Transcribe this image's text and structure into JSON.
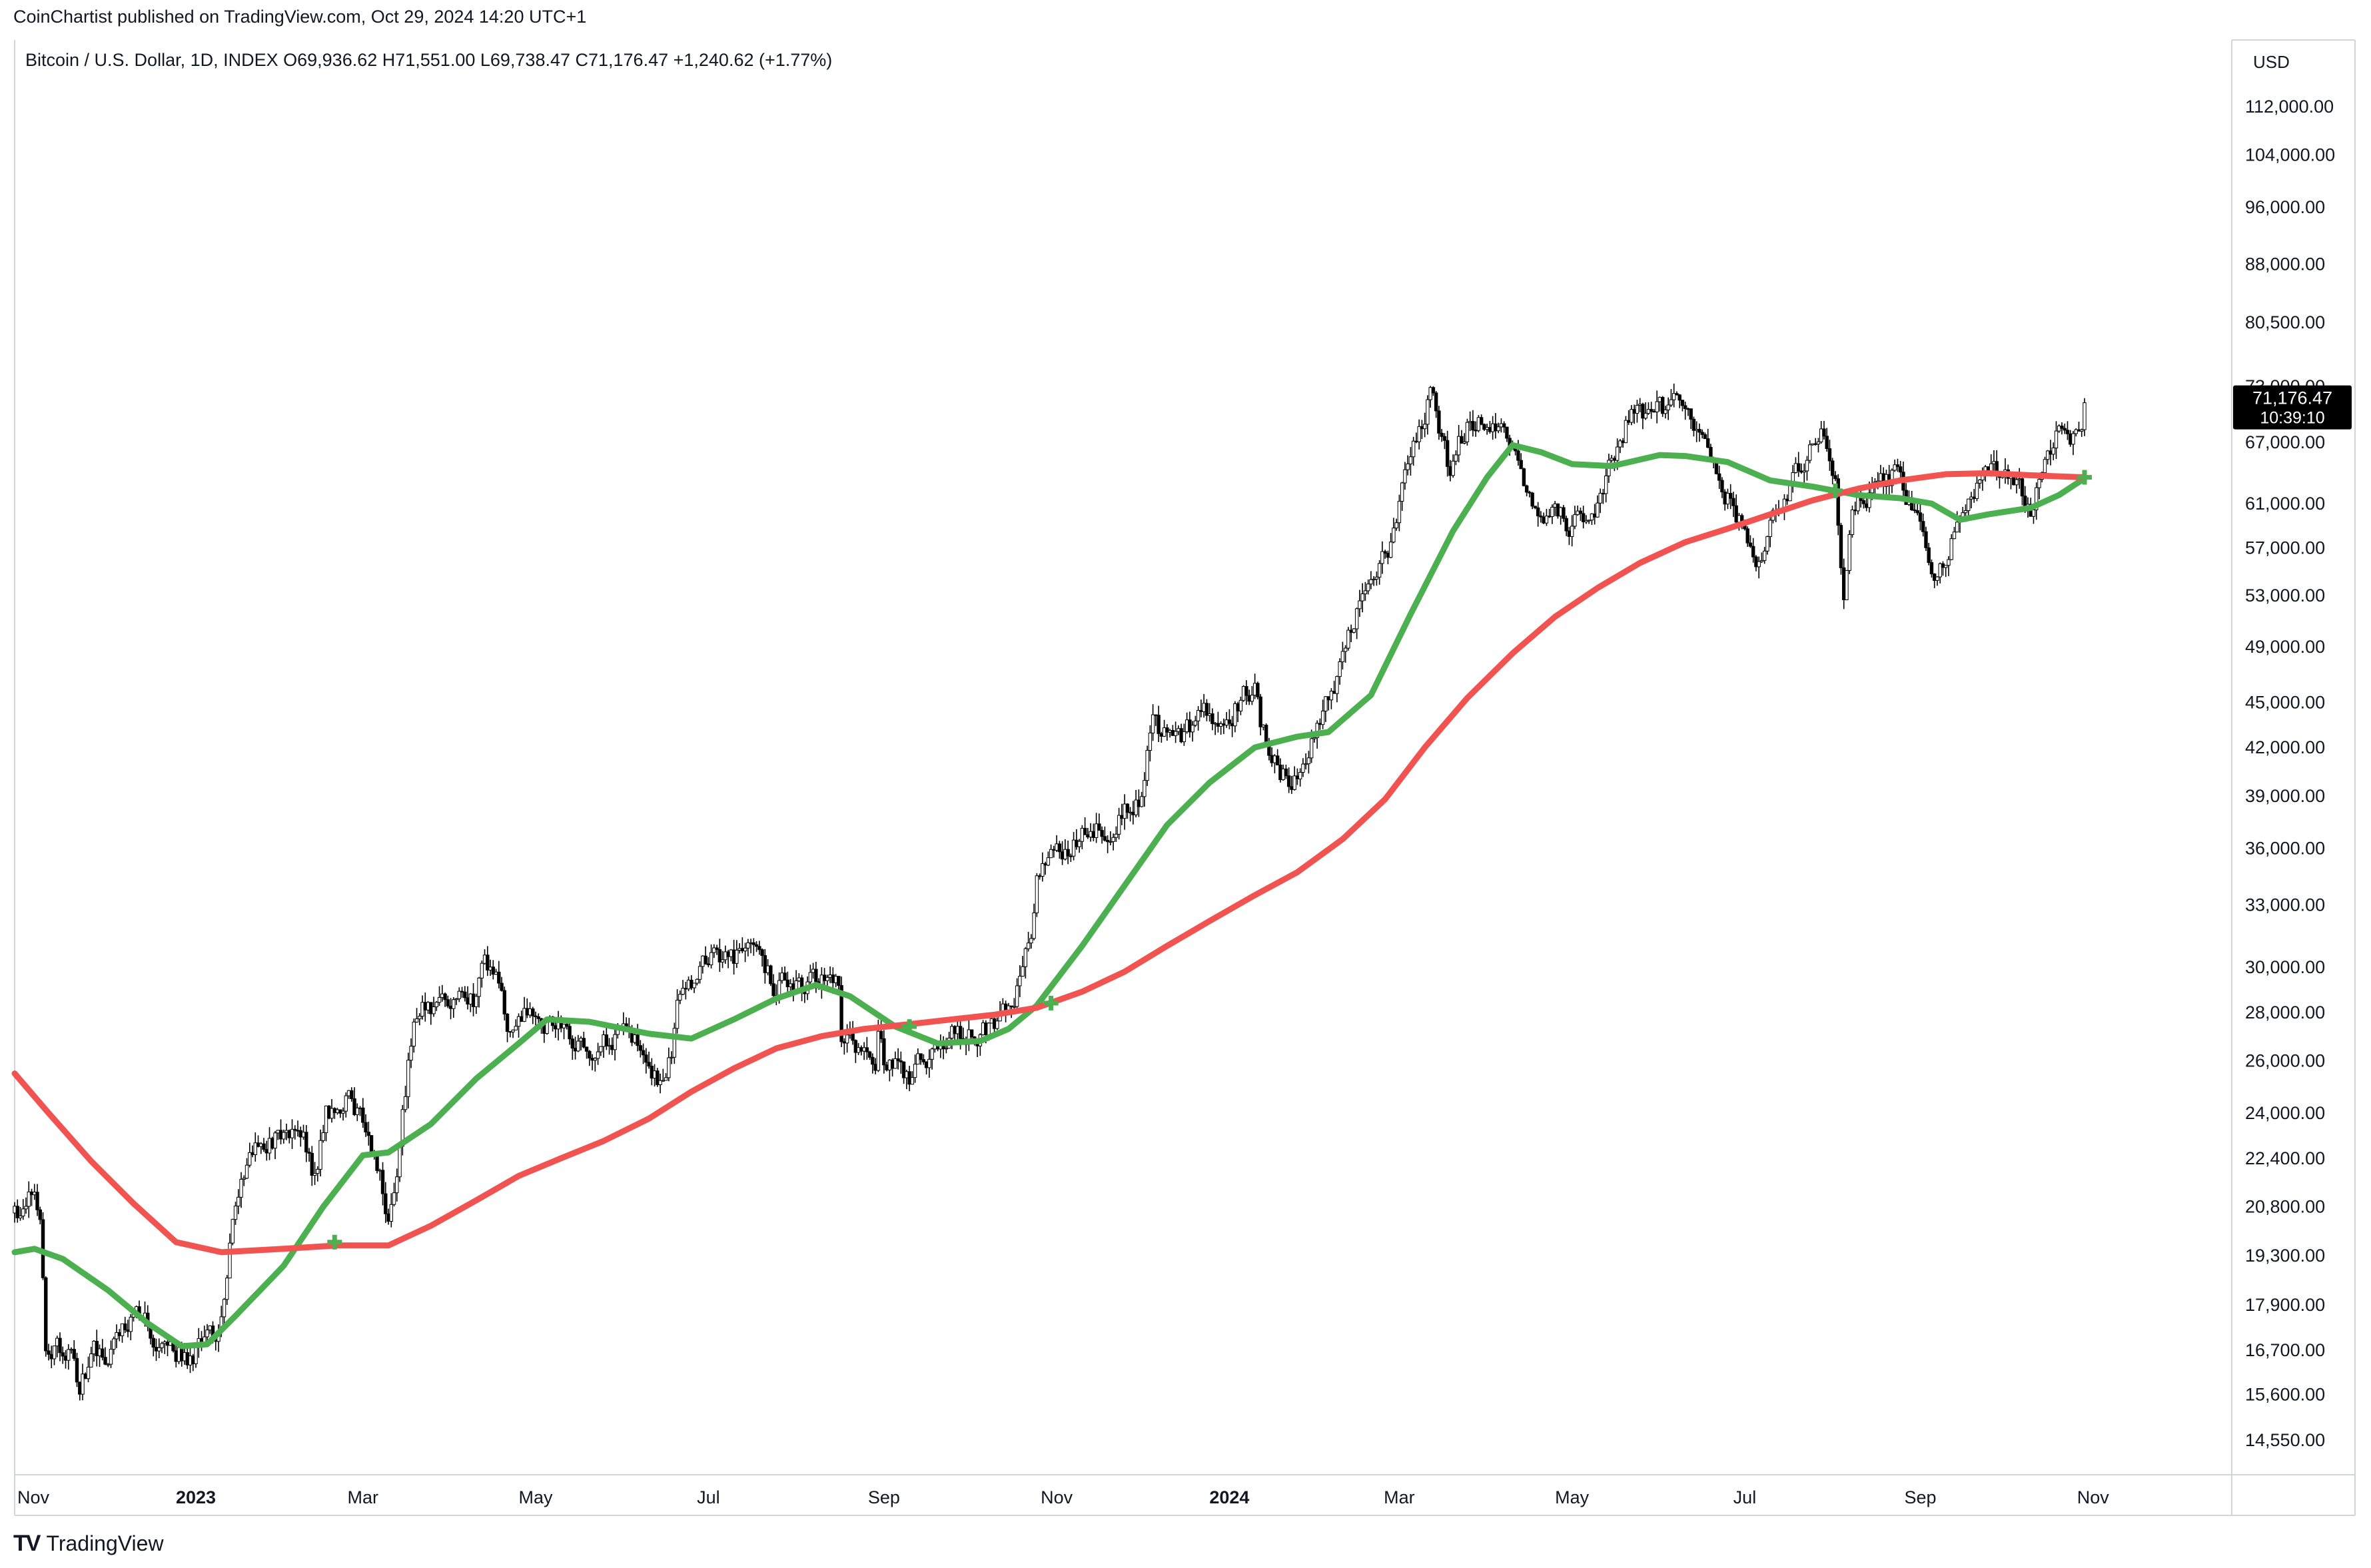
{
  "header": {
    "publisher": "CoinChartist published on TradingView.com, Oct 29, 2024 14:20 UTC+1",
    "symbol_info": "Bitcoin / U.S. Dollar, 1D, INDEX  O69,936.62  H71,551.00  L69,738.47  C71,176.47  +1,240.62 (+1.77%)"
  },
  "price_scale": {
    "currency": "USD",
    "last_price_label": "71,176.47",
    "countdown_label": "10:39:10"
  },
  "branding": {
    "logo": "TV",
    "name": "TradingView"
  },
  "colors": {
    "green_ma": "#4caf50",
    "red_ma": "#f05350",
    "candles": "#000000",
    "last_price_bg": "#000000"
  },
  "chart_data": {
    "type": "line",
    "title": "Bitcoin / U.S. Dollar, 1D, INDEX",
    "log_scale": true,
    "ylim": [
      13800,
      124000
    ],
    "xlim": [
      "2022-10-29",
      "2024-12-20"
    ],
    "y_ticks": [
      {
        "value": 112000,
        "label": "112,000.00"
      },
      {
        "value": 104000,
        "label": "104,000.00"
      },
      {
        "value": 96000,
        "label": "96,000.00"
      },
      {
        "value": 88000,
        "label": "88,000.00"
      },
      {
        "value": 80500,
        "label": "80,500.00"
      },
      {
        "value": 73000,
        "label": "73,000.00"
      },
      {
        "value": 67000,
        "label": "67,000.00"
      },
      {
        "value": 61000,
        "label": "61,000.00"
      },
      {
        "value": 57000,
        "label": "57,000.00"
      },
      {
        "value": 53000,
        "label": "53,000.00"
      },
      {
        "value": 49000,
        "label": "49,000.00"
      },
      {
        "value": 45000,
        "label": "45,000.00"
      },
      {
        "value": 42000,
        "label": "42,000.00"
      },
      {
        "value": 39000,
        "label": "39,000.00"
      },
      {
        "value": 36000,
        "label": "36,000.00"
      },
      {
        "value": 33000,
        "label": "33,000.00"
      },
      {
        "value": 30000,
        "label": "30,000.00"
      },
      {
        "value": 28000,
        "label": "28,000.00"
      },
      {
        "value": 26000,
        "label": "26,000.00"
      },
      {
        "value": 24000,
        "label": "24,000.00"
      },
      {
        "value": 22400,
        "label": "22,400.00"
      },
      {
        "value": 20800,
        "label": "20,800.00"
      },
      {
        "value": 19300,
        "label": "19,300.00"
      },
      {
        "value": 17900,
        "label": "17,900.00"
      },
      {
        "value": 16700,
        "label": "16,700.00"
      },
      {
        "value": 15600,
        "label": "15,600.00"
      },
      {
        "value": 14550,
        "label": "14,550.00"
      }
    ],
    "x_ticks": [
      {
        "date": "2022-11-01",
        "label": "Nov",
        "bold": false
      },
      {
        "date": "2023-01-01",
        "label": "2023",
        "bold": true
      },
      {
        "date": "2023-03-01",
        "label": "Mar",
        "bold": false
      },
      {
        "date": "2023-05-01",
        "label": "May",
        "bold": false
      },
      {
        "date": "2023-07-01",
        "label": "Jul",
        "bold": false
      },
      {
        "date": "2023-09-01",
        "label": "Sep",
        "bold": false
      },
      {
        "date": "2023-11-01",
        "label": "Nov",
        "bold": false
      },
      {
        "date": "2024-01-01",
        "label": "2024",
        "bold": true
      },
      {
        "date": "2024-03-01",
        "label": "Mar",
        "bold": false
      },
      {
        "date": "2024-05-01",
        "label": "May",
        "bold": false
      },
      {
        "date": "2024-07-01",
        "label": "Jul",
        "bold": false
      },
      {
        "date": "2024-09-01",
        "label": "Sep",
        "bold": false
      },
      {
        "date": "2024-11-01",
        "label": "Nov",
        "bold": false
      }
    ],
    "price_anchors": [
      [
        "2022-10-29",
        20600
      ],
      [
        "2022-11-05",
        21100
      ],
      [
        "2022-11-07",
        20500
      ],
      [
        "2022-11-09",
        16500
      ],
      [
        "2022-11-12",
        16700
      ],
      [
        "2022-11-18",
        16600
      ],
      [
        "2022-11-21",
        15800
      ],
      [
        "2022-11-26",
        16500
      ],
      [
        "2022-12-05",
        17000
      ],
      [
        "2022-12-14",
        17800
      ],
      [
        "2022-12-18",
        16800
      ],
      [
        "2022-12-31",
        16550
      ],
      [
        "2023-01-08",
        17100
      ],
      [
        "2023-01-13",
        19800
      ],
      [
        "2023-01-16",
        21000
      ],
      [
        "2023-01-21",
        22600
      ],
      [
        "2023-01-30",
        23200
      ],
      [
        "2023-02-08",
        23000
      ],
      [
        "2023-02-12",
        21800
      ],
      [
        "2023-02-16",
        24000
      ],
      [
        "2023-02-23",
        24500
      ],
      [
        "2023-03-02",
        23400
      ],
      [
        "2023-03-07",
        22000
      ],
      [
        "2023-03-10",
        20200
      ],
      [
        "2023-03-13",
        22200
      ],
      [
        "2023-03-16",
        24800
      ],
      [
        "2023-03-19",
        28000
      ],
      [
        "2023-03-31",
        28400
      ],
      [
        "2023-04-09",
        28300
      ],
      [
        "2023-04-11",
        30200
      ],
      [
        "2023-04-18",
        29600
      ],
      [
        "2023-04-21",
        27200
      ],
      [
        "2023-05-01",
        28000
      ],
      [
        "2023-05-10",
        27400
      ],
      [
        "2023-05-20",
        26900
      ],
      [
        "2023-06-01",
        27000
      ],
      [
        "2023-06-10",
        26000
      ],
      [
        "2023-06-15",
        25300
      ],
      [
        "2023-06-18",
        26300
      ],
      [
        "2023-06-21",
        29000
      ],
      [
        "2023-07-01",
        30500
      ],
      [
        "2023-07-10",
        30200
      ],
      [
        "2023-07-14",
        30900
      ],
      [
        "2023-07-24",
        29200
      ],
      [
        "2023-08-01",
        29300
      ],
      [
        "2023-08-10",
        29400
      ],
      [
        "2023-08-16",
        29100
      ],
      [
        "2023-08-17",
        26600
      ],
      [
        "2023-08-29",
        26000
      ],
      [
        "2023-08-30",
        27600
      ],
      [
        "2023-09-01",
        26000
      ],
      [
        "2023-09-11",
        25300
      ],
      [
        "2023-09-18",
        26600
      ],
      [
        "2023-10-01",
        27400
      ],
      [
        "2023-10-10",
        27200
      ],
      [
        "2023-10-16",
        28300
      ],
      [
        "2023-10-20",
        29500
      ],
      [
        "2023-10-23",
        31200
      ],
      [
        "2023-10-25",
        34500
      ],
      [
        "2023-11-10",
        37200
      ],
      [
        "2023-11-20",
        37400
      ],
      [
        "2023-12-01",
        39000
      ],
      [
        "2023-12-05",
        43500
      ],
      [
        "2023-12-13",
        42000
      ],
      [
        "2023-12-20",
        43500
      ],
      [
        "2024-01-02",
        44900
      ],
      [
        "2024-01-10",
        46000
      ],
      [
        "2024-01-12",
        43000
      ],
      [
        "2024-01-23",
        39600
      ],
      [
        "2024-02-01",
        42800
      ],
      [
        "2024-02-09",
        47500
      ],
      [
        "2024-02-15",
        51800
      ],
      [
        "2024-02-27",
        57000
      ],
      [
        "2024-03-05",
        66000
      ],
      [
        "2024-03-13",
        73000
      ],
      [
        "2024-03-19",
        63500
      ],
      [
        "2024-03-26",
        70000
      ],
      [
        "2024-04-05",
        68000
      ],
      [
        "2024-04-13",
        65000
      ],
      [
        "2024-04-17",
        61200
      ],
      [
        "2024-04-30",
        59000
      ],
      [
        "2024-05-10",
        61000
      ],
      [
        "2024-05-15",
        66000
      ],
      [
        "2024-05-21",
        70000
      ],
      [
        "2024-06-07",
        70500
      ],
      [
        "2024-06-20",
        65000
      ],
      [
        "2024-07-05",
        56500
      ],
      [
        "2024-07-15",
        62000
      ],
      [
        "2024-07-29",
        68000
      ],
      [
        "2024-08-02",
        64000
      ],
      [
        "2024-08-05",
        53000
      ],
      [
        "2024-08-08",
        61000
      ],
      [
        "2024-08-25",
        64000
      ],
      [
        "2024-09-06",
        54000
      ],
      [
        "2024-09-15",
        59000
      ],
      [
        "2024-09-27",
        65500
      ],
      [
        "2024-10-10",
        60000
      ],
      [
        "2024-10-15",
        66000
      ],
      [
        "2024-10-20",
        68500
      ],
      [
        "2024-10-24",
        67500
      ],
      [
        "2024-10-29",
        71176
      ]
    ],
    "series": [
      {
        "color": "#4caf50",
        "points": [
          [
            "2022-10-29",
            19400
          ],
          [
            "2022-11-05",
            19500
          ],
          [
            "2022-11-15",
            19200
          ],
          [
            "2022-12-01",
            18300
          ],
          [
            "2022-12-15",
            17400
          ],
          [
            "2022-12-27",
            16800
          ],
          [
            "2023-01-05",
            16850
          ],
          [
            "2023-01-15",
            17600
          ],
          [
            "2023-02-01",
            19000
          ],
          [
            "2023-02-15",
            20800
          ],
          [
            "2023-03-01",
            22500
          ],
          [
            "2023-03-10",
            22600
          ],
          [
            "2023-03-25",
            23600
          ],
          [
            "2023-04-10",
            25300
          ],
          [
            "2023-04-25",
            26700
          ],
          [
            "2023-05-05",
            27700
          ],
          [
            "2023-05-20",
            27600
          ],
          [
            "2023-06-10",
            27100
          ],
          [
            "2023-06-25",
            26900
          ],
          [
            "2023-07-10",
            27700
          ],
          [
            "2023-07-25",
            28600
          ],
          [
            "2023-08-08",
            29200
          ],
          [
            "2023-08-20",
            28700
          ],
          [
            "2023-09-05",
            27400
          ],
          [
            "2023-09-20",
            26700
          ],
          [
            "2023-10-05",
            26800
          ],
          [
            "2023-10-15",
            27300
          ],
          [
            "2023-10-25",
            28300
          ],
          [
            "2023-11-10",
            31000
          ],
          [
            "2023-11-25",
            34000
          ],
          [
            "2023-12-10",
            37300
          ],
          [
            "2023-12-25",
            39800
          ],
          [
            "2024-01-10",
            42000
          ],
          [
            "2024-01-25",
            42700
          ],
          [
            "2024-02-05",
            43000
          ],
          [
            "2024-02-20",
            45500
          ],
          [
            "2024-03-05",
            51500
          ],
          [
            "2024-03-20",
            58500
          ],
          [
            "2024-04-01",
            63500
          ],
          [
            "2024-04-10",
            66700
          ],
          [
            "2024-04-20",
            66000
          ],
          [
            "2024-05-01",
            64800
          ],
          [
            "2024-05-15",
            64600
          ],
          [
            "2024-06-01",
            65700
          ],
          [
            "2024-06-10",
            65600
          ],
          [
            "2024-06-25",
            65000
          ],
          [
            "2024-07-10",
            63200
          ],
          [
            "2024-07-25",
            62600
          ],
          [
            "2024-08-10",
            61800
          ],
          [
            "2024-08-25",
            61500
          ],
          [
            "2024-09-05",
            61000
          ],
          [
            "2024-09-15",
            59500
          ],
          [
            "2024-09-25",
            60000
          ],
          [
            "2024-10-10",
            60600
          ],
          [
            "2024-10-20",
            61800
          ],
          [
            "2024-10-29",
            63400
          ]
        ]
      },
      {
        "color": "#f05350",
        "points": [
          [
            "2022-10-29",
            25500
          ],
          [
            "2022-11-10",
            24000
          ],
          [
            "2022-11-25",
            22300
          ],
          [
            "2022-12-10",
            20900
          ],
          [
            "2022-12-25",
            19700
          ],
          [
            "2023-01-10",
            19400
          ],
          [
            "2023-02-01",
            19500
          ],
          [
            "2023-02-20",
            19600
          ],
          [
            "2023-03-10",
            19600
          ],
          [
            "2023-03-25",
            20200
          ],
          [
            "2023-04-10",
            21000
          ],
          [
            "2023-04-25",
            21800
          ],
          [
            "2023-05-10",
            22400
          ],
          [
            "2023-05-25",
            23000
          ],
          [
            "2023-06-10",
            23800
          ],
          [
            "2023-06-25",
            24800
          ],
          [
            "2023-07-10",
            25700
          ],
          [
            "2023-07-25",
            26500
          ],
          [
            "2023-08-10",
            27000
          ],
          [
            "2023-08-25",
            27300
          ],
          [
            "2023-09-10",
            27500
          ],
          [
            "2023-09-25",
            27700
          ],
          [
            "2023-10-10",
            27900
          ],
          [
            "2023-10-25",
            28200
          ],
          [
            "2023-11-10",
            28900
          ],
          [
            "2023-11-25",
            29800
          ],
          [
            "2023-12-10",
            31000
          ],
          [
            "2023-12-25",
            32200
          ],
          [
            "2024-01-10",
            33500
          ],
          [
            "2024-01-25",
            34700
          ],
          [
            "2024-02-10",
            36500
          ],
          [
            "2024-02-25",
            38800
          ],
          [
            "2024-03-10",
            42000
          ],
          [
            "2024-03-25",
            45300
          ],
          [
            "2024-04-10",
            48500
          ],
          [
            "2024-04-25",
            51300
          ],
          [
            "2024-05-10",
            53600
          ],
          [
            "2024-05-25",
            55700
          ],
          [
            "2024-06-10",
            57500
          ],
          [
            "2024-06-25",
            58700
          ],
          [
            "2024-07-10",
            60000
          ],
          [
            "2024-07-25",
            61300
          ],
          [
            "2024-08-10",
            62400
          ],
          [
            "2024-08-25",
            63200
          ],
          [
            "2024-09-10",
            63800
          ],
          [
            "2024-09-25",
            63900
          ],
          [
            "2024-10-10",
            63700
          ],
          [
            "2024-10-29",
            63500
          ]
        ]
      }
    ],
    "crossovers": [
      {
        "date": "2023-02-19",
        "value": 19700
      },
      {
        "date": "2023-09-10",
        "value": 27400
      },
      {
        "date": "2023-10-30",
        "value": 28400
      },
      {
        "date": "2024-08-02",
        "value": 62200
      },
      {
        "date": "2024-10-29",
        "value": 63500
      }
    ],
    "last_price": 71176.47
  }
}
